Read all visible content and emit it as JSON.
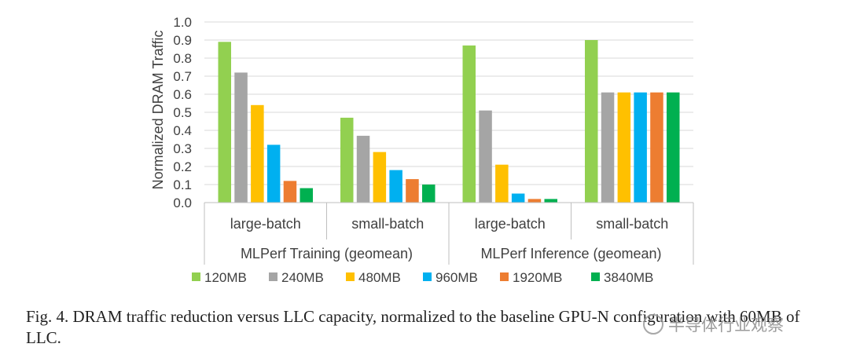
{
  "chart_data": {
    "type": "bar",
    "ylabel": "Normalized DRAM Traffic",
    "ylim": [
      0,
      1.0
    ],
    "yticks": [
      "0.0",
      "0.1",
      "0.2",
      "0.3",
      "0.4",
      "0.5",
      "0.6",
      "0.7",
      "0.8",
      "0.9",
      "1.0"
    ],
    "grid": true,
    "legend_position": "bottom",
    "groups": [
      {
        "label": "MLPerf Training (geomean)",
        "categories": [
          "large-batch",
          "small-batch"
        ]
      },
      {
        "label": "MLPerf Inference (geomean)",
        "categories": [
          "large-batch",
          "small-batch"
        ]
      }
    ],
    "categories": [
      "large-batch",
      "small-batch",
      "large-batch",
      "small-batch"
    ],
    "series": [
      {
        "name": "120MB",
        "color": "#92D050",
        "values": [
          0.89,
          0.47,
          0.87,
          0.9
        ]
      },
      {
        "name": "240MB",
        "color": "#A5A5A5",
        "values": [
          0.72,
          0.37,
          0.51,
          0.61
        ]
      },
      {
        "name": "480MB",
        "color": "#FFC000",
        "values": [
          0.54,
          0.28,
          0.21,
          0.61
        ]
      },
      {
        "name": "960MB",
        "color": "#00B0F0",
        "values": [
          0.32,
          0.18,
          0.05,
          0.61
        ]
      },
      {
        "name": "1920MB",
        "color": "#ED7D31",
        "values": [
          0.12,
          0.13,
          0.02,
          0.61
        ]
      },
      {
        "name": "3840MB",
        "color": "#00B050",
        "values": [
          0.08,
          0.1,
          0.02,
          0.61
        ]
      }
    ]
  },
  "caption": "Fig. 4.  DRAM traffic reduction versus LLC capacity, normalized to the baseline GPU-N configuration with 60MB of LLC.",
  "watermark": "半导体行业观察"
}
